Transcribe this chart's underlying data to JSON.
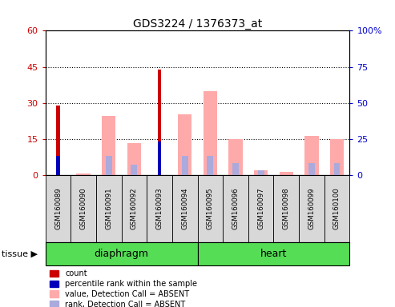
{
  "title": "GDS3224 / 1376373_at",
  "samples": [
    "GSM160089",
    "GSM160090",
    "GSM160091",
    "GSM160092",
    "GSM160093",
    "GSM160094",
    "GSM160095",
    "GSM160096",
    "GSM160097",
    "GSM160098",
    "GSM160099",
    "GSM160100"
  ],
  "count": [
    29,
    0,
    0,
    0,
    44,
    0,
    0,
    0,
    0,
    0,
    0,
    0
  ],
  "percentile_rank": [
    13,
    0,
    0,
    0,
    23,
    0,
    0,
    0,
    0,
    0,
    0,
    0
  ],
  "value_absent": [
    0,
    1,
    41,
    22,
    0,
    42,
    58,
    25,
    3,
    2,
    27,
    25
  ],
  "rank_absent": [
    0,
    0,
    13,
    7,
    0,
    13,
    13,
    8,
    3,
    0,
    8,
    8
  ],
  "ylim_left": [
    0,
    60
  ],
  "ylim_right": [
    0,
    100
  ],
  "yticks_left": [
    0,
    15,
    30,
    45,
    60
  ],
  "yticks_right": [
    0,
    25,
    50,
    75,
    100
  ],
  "ytick_labels_left": [
    "0",
    "15",
    "30",
    "45",
    "60"
  ],
  "ytick_labels_right": [
    "0",
    "25",
    "50",
    "75",
    "100%"
  ],
  "left_axis_color": "#cc0000",
  "right_axis_color": "#0000cc",
  "count_color": "#cc0000",
  "rank_color": "#0000bb",
  "value_absent_color": "#ffaaaa",
  "rank_absent_color": "#aaaadd",
  "bg_color": "#d8d8d8",
  "group_color": "#55dd55",
  "diaphragm_label": "diaphragm",
  "heart_label": "heart",
  "tissue_label": "tissue ▶",
  "legend_items": [
    {
      "label": "count",
      "color": "#cc0000"
    },
    {
      "label": "percentile rank within the sample",
      "color": "#0000bb"
    },
    {
      "label": "value, Detection Call = ABSENT",
      "color": "#ffaaaa"
    },
    {
      "label": "rank, Detection Call = ABSENT",
      "color": "#aaaadd"
    }
  ]
}
